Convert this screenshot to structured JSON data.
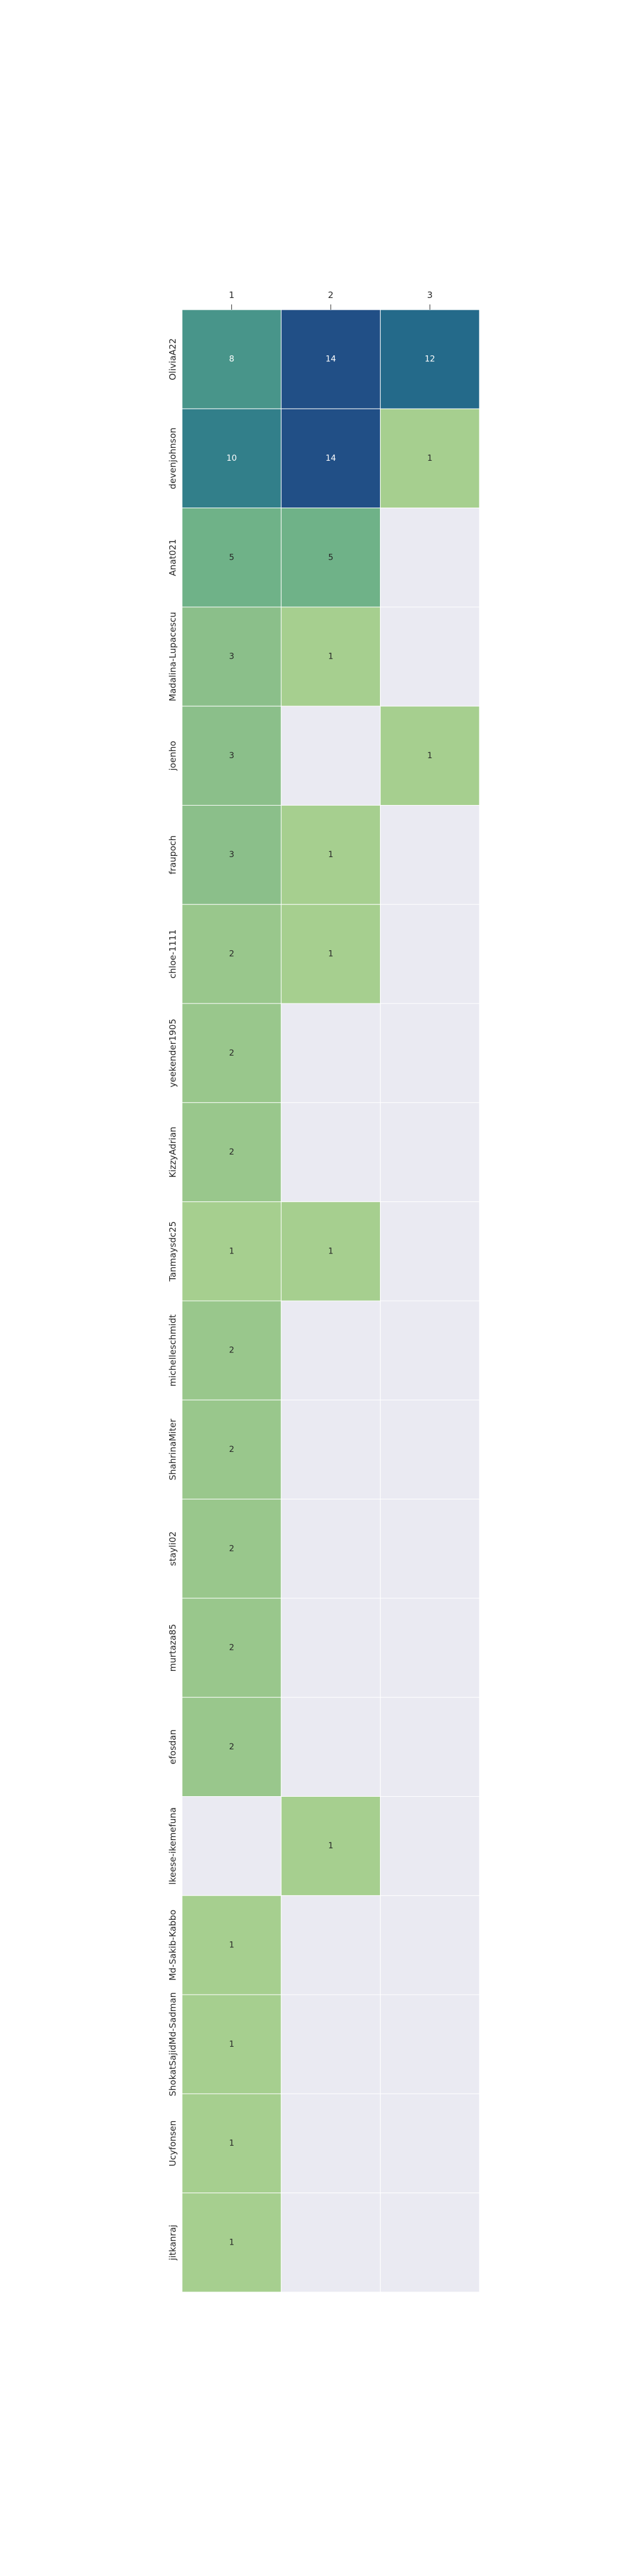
{
  "chart_data": {
    "type": "heatmap",
    "title": "",
    "xlabel": "",
    "ylabel": "",
    "x_tick_position": "top",
    "columns": [
      "1",
      "2",
      "3"
    ],
    "rows": [
      "OliviaA22",
      "devenjohnson",
      "Anat021",
      "Madalina-Lupacescu",
      "joenho",
      "fraupoch",
      "chloe-1111",
      "yeekender1905",
      "KizzyAdrian",
      "Tanmaysdc25",
      "michelleschmidt",
      "ShahrinaMiter",
      "stayli02",
      "murtaza85",
      "efosdan",
      "lkeese-ikemefuna",
      "Md-Sakib-Kabbo",
      "ShokatSajidMd-Sadman",
      "Ucyfonsen",
      "jitkanraj"
    ],
    "values": [
      [
        8,
        14,
        12
      ],
      [
        10,
        14,
        1
      ],
      [
        5,
        5,
        null
      ],
      [
        3,
        1,
        null
      ],
      [
        3,
        null,
        1
      ],
      [
        3,
        1,
        null
      ],
      [
        2,
        1,
        null
      ],
      [
        2,
        null,
        null
      ],
      [
        2,
        null,
        null
      ],
      [
        1,
        1,
        null
      ],
      [
        2,
        null,
        null
      ],
      [
        2,
        null,
        null
      ],
      [
        2,
        null,
        null
      ],
      [
        2,
        null,
        null
      ],
      [
        2,
        null,
        null
      ],
      [
        null,
        1,
        null
      ],
      [
        1,
        null,
        null
      ],
      [
        1,
        null,
        null
      ],
      [
        1,
        null,
        null
      ],
      [
        1,
        null,
        null
      ]
    ],
    "value_range": [
      1,
      14
    ],
    "colormap": [
      "#a6cf8f",
      "#8dc08a",
      "#73b488",
      "#5aa78a",
      "#438f8a",
      "#2f7c8a",
      "#23698a",
      "#214f86"
    ],
    "missing_color": "#eaeaf2",
    "text_color_light": "#ffffff",
    "text_color_dark": "#262626",
    "annotated": true,
    "grid": false,
    "legend": "none"
  }
}
